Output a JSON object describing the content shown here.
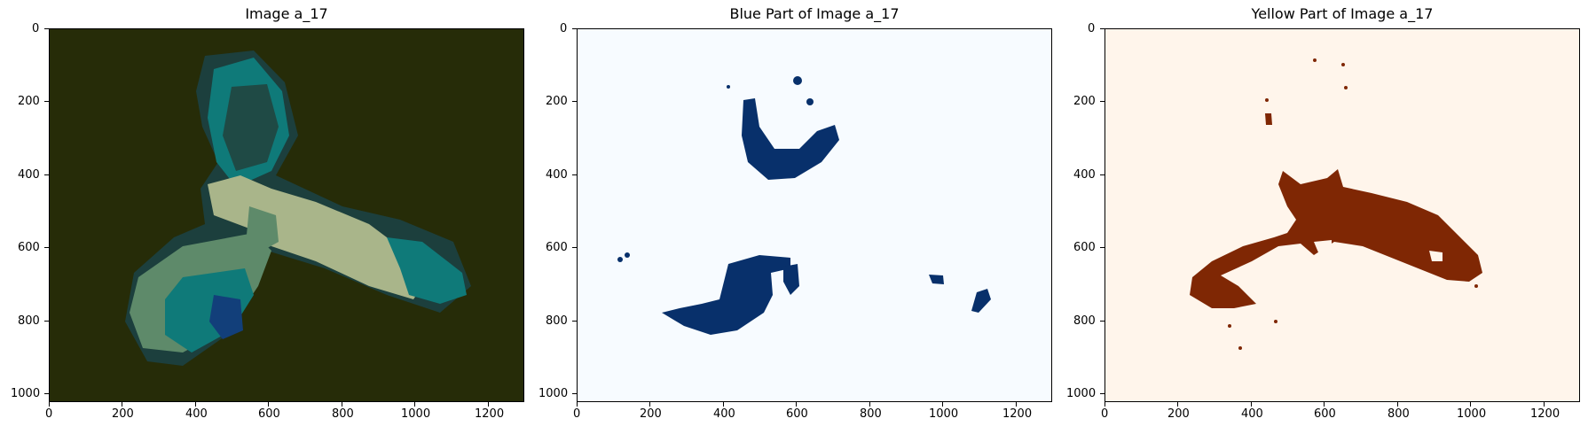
{
  "panels": [
    {
      "title": "Image a_17",
      "image": "segmented-cell-image",
      "background": "#262c08",
      "colors": [
        "#1f4a45",
        "#0f7a79",
        "#5e8a6a",
        "#a9b58a",
        "#123f7a",
        "#2a6a50"
      ]
    },
    {
      "title": "Blue Part of Image a_17",
      "image": "blue-part-mask",
      "background": "#f7fbff",
      "colors": [
        "#08306b"
      ]
    },
    {
      "title": "Yellow Part of Image a_17",
      "image": "yellow-part-mask",
      "background": "#fff5eb",
      "colors": [
        "#7f2704"
      ]
    }
  ],
  "axes": {
    "xticks": [
      "0",
      "200",
      "400",
      "600",
      "800",
      "1000",
      "1200"
    ],
    "yticks": [
      "0",
      "200",
      "400",
      "600",
      "800",
      "1000"
    ]
  }
}
